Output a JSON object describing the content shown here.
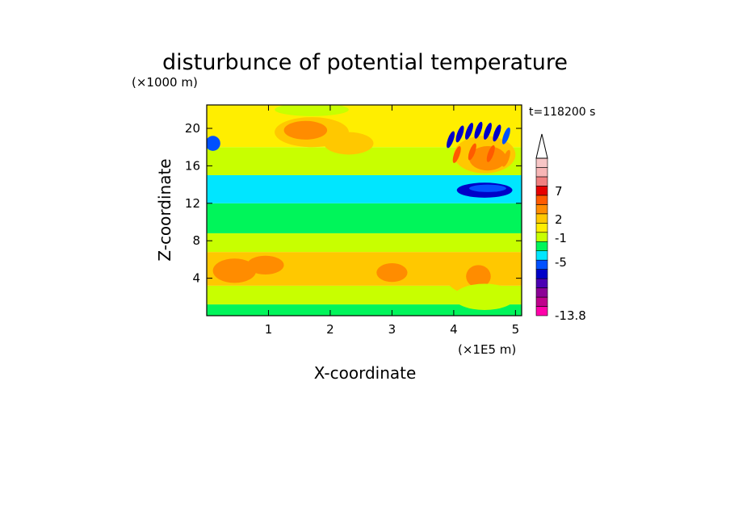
{
  "chart_data": {
    "type": "heatmap",
    "title": "disturbunce of potential temperature",
    "time_label": "t=118200 s",
    "ylabel": "Z-coordinate",
    "yunit": "(×1000 m)",
    "xlabel": "X-coordinate",
    "xunit": "(×1E5 m)",
    "xlim": [
      0,
      5.1
    ],
    "ylim": [
      0,
      22.5
    ],
    "xticks": [
      "1",
      "2",
      "3",
      "4",
      "5"
    ],
    "yticks": [
      "4",
      "8",
      "12",
      "16",
      "20"
    ],
    "colorbar": {
      "min_label": "-13.8",
      "tick_labels": [
        "7",
        "2",
        "-1",
        "-5",
        "-13.8"
      ],
      "levels": [
        {
          "color": "#ff00aa"
        },
        {
          "color": "#c0008c"
        },
        {
          "color": "#8c0096"
        },
        {
          "color": "#4b00b4"
        },
        {
          "color": "#0000c8"
        },
        {
          "color": "#0050ff"
        },
        {
          "color": "#00e6ff"
        },
        {
          "color": "#00f55a"
        },
        {
          "color": "#c8ff00"
        },
        {
          "color": "#ffee00"
        },
        {
          "color": "#ffc800"
        },
        {
          "color": "#ff8c00"
        },
        {
          "color": "#ff5a00"
        },
        {
          "color": "#e60000"
        },
        {
          "color": "#f08080"
        },
        {
          "color": "#f7b6b6"
        },
        {
          "color": "#f7c6c6"
        }
      ]
    },
    "bands": [
      {
        "z": [
          0,
          1.2
        ],
        "color": "#00f55a"
      },
      {
        "z": [
          1.2,
          3.2
        ],
        "color": "#c8ff00"
      },
      {
        "z": [
          3.2,
          6.8
        ],
        "color": "#ffc800"
      },
      {
        "z": [
          6.8,
          8.8
        ],
        "color": "#c8ff00"
      },
      {
        "z": [
          8.8,
          12.0
        ],
        "color": "#00f55a"
      },
      {
        "z": [
          12.0,
          15.0
        ],
        "color": "#00e6ff"
      },
      {
        "z": [
          15.0,
          18.0
        ],
        "color": "#c8ff00"
      },
      {
        "z": [
          18.0,
          22.5
        ],
        "color": "#ffee00"
      }
    ],
    "features": [
      {
        "x": 0.45,
        "z": 4.8,
        "rx": 0.35,
        "rz": 1.3,
        "color": "#ff8c00"
      },
      {
        "x": 0.95,
        "z": 5.4,
        "rx": 0.3,
        "rz": 1.0,
        "color": "#ff8c00"
      },
      {
        "x": 3.0,
        "z": 4.6,
        "rx": 0.25,
        "rz": 1.0,
        "color": "#ff8c00"
      },
      {
        "x": 1.7,
        "z": 19.6,
        "rx": 0.6,
        "rz": 1.6,
        "color": "#ffc800"
      },
      {
        "x": 1.6,
        "z": 19.8,
        "rx": 0.35,
        "rz": 1.0,
        "color": "#ff8c00"
      },
      {
        "x": 2.3,
        "z": 18.4,
        "rx": 0.4,
        "rz": 1.2,
        "color": "#ffc800"
      },
      {
        "x": 0.1,
        "z": 18.4,
        "rx": 0.12,
        "rz": 0.8,
        "color": "#0050ff"
      },
      {
        "x": 1.7,
        "z": 22.0,
        "rx": 0.6,
        "rz": 0.7,
        "color": "#c8ff00"
      },
      {
        "x": 4.5,
        "z": 17.2,
        "rx": 0.5,
        "rz": 2.0,
        "color": "#ffc800"
      },
      {
        "x": 4.55,
        "z": 16.8,
        "rx": 0.3,
        "rz": 1.3,
        "color": "#ff8c00"
      },
      {
        "x": 4.5,
        "z": 13.4,
        "rx": 0.45,
        "rz": 0.8,
        "color": "#0000c8"
      },
      {
        "x": 4.55,
        "z": 13.6,
        "rx": 0.3,
        "rz": 0.4,
        "color": "#0050ff"
      },
      {
        "x": 4.3,
        "z": 4.5,
        "rx": 0.45,
        "rz": 2.2,
        "color": "#ffc800"
      },
      {
        "x": 4.4,
        "z": 4.2,
        "rx": 0.2,
        "rz": 1.2,
        "color": "#ff8c00"
      },
      {
        "x": 4.5,
        "z": 2.0,
        "rx": 0.5,
        "rz": 1.4,
        "color": "#c8ff00"
      }
    ],
    "streaks": [
      {
        "x": 3.95,
        "z": 18.8,
        "color": "#0000c8"
      },
      {
        "x": 4.1,
        "z": 19.4,
        "color": "#0000c8"
      },
      {
        "x": 4.25,
        "z": 19.7,
        "color": "#0000c8"
      },
      {
        "x": 4.4,
        "z": 19.8,
        "color": "#0000c8"
      },
      {
        "x": 4.55,
        "z": 19.7,
        "color": "#0000c8"
      },
      {
        "x": 4.7,
        "z": 19.5,
        "color": "#0000c8"
      },
      {
        "x": 4.85,
        "z": 19.2,
        "color": "#0050ff"
      },
      {
        "x": 4.05,
        "z": 17.2,
        "color": "#ff5a00"
      },
      {
        "x": 4.3,
        "z": 17.5,
        "color": "#ff5a00"
      },
      {
        "x": 4.6,
        "z": 17.3,
        "color": "#ff5a00"
      },
      {
        "x": 4.85,
        "z": 16.8,
        "color": "#ff8c00"
      }
    ]
  }
}
